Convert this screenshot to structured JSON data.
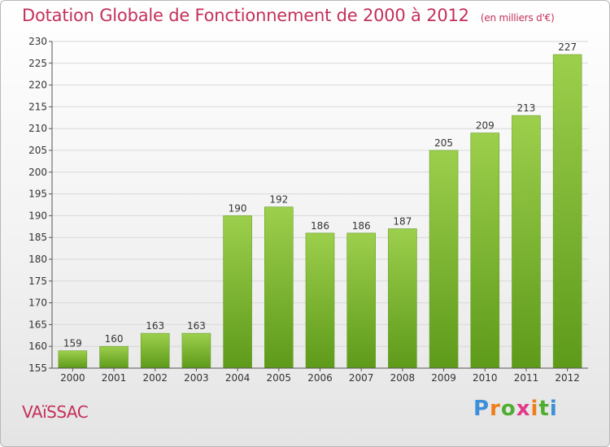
{
  "title": "Dotation Globale de Fonctionnement de 2000 à 2012",
  "unit": "(en milliers d'€)",
  "commune": "VAïSSAC",
  "brand": [
    "P",
    "r",
    "o",
    "x",
    "i",
    "t",
    "i"
  ],
  "colors": {
    "bar_top": "#9ccf4c",
    "bar_bottom": "#5e9a1a",
    "accent": "#c4305a",
    "grid": "#d8d8d8"
  },
  "chart_data": {
    "type": "bar",
    "title": "Dotation Globale de Fonctionnement de 2000 à 2012",
    "subtitle": "(en milliers d'€)",
    "categories": [
      "2000",
      "2001",
      "2002",
      "2003",
      "2004",
      "2005",
      "2006",
      "2007",
      "2008",
      "2009",
      "2010",
      "2011",
      "2012"
    ],
    "values": [
      159,
      160,
      163,
      163,
      190,
      192,
      186,
      186,
      187,
      205,
      209,
      213,
      227
    ],
    "ylim": [
      155,
      230
    ],
    "yticks": [
      155,
      160,
      165,
      170,
      175,
      180,
      185,
      190,
      195,
      200,
      205,
      210,
      215,
      220,
      225,
      230
    ],
    "grid": true,
    "xlabel": "",
    "ylabel": ""
  }
}
